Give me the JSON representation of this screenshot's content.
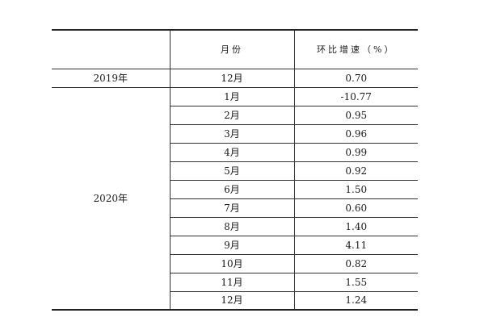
{
  "table": {
    "headers": {
      "year": "",
      "month": "月份",
      "rate": "环比增速（%）"
    },
    "groups": [
      {
        "year": "2019年",
        "rows": [
          {
            "month": "12月",
            "rate": "0.70"
          }
        ]
      },
      {
        "year": "2020年",
        "rows": [
          {
            "month": "1月",
            "rate": "-10.77"
          },
          {
            "month": "2月",
            "rate": "0.95"
          },
          {
            "month": "3月",
            "rate": "0.96"
          },
          {
            "month": "4月",
            "rate": "0.99"
          },
          {
            "month": "5月",
            "rate": "0.92"
          },
          {
            "month": "6月",
            "rate": "1.50"
          },
          {
            "month": "7月",
            "rate": "0.60"
          },
          {
            "month": "8月",
            "rate": "1.40"
          },
          {
            "month": "9月",
            "rate": "4.11"
          },
          {
            "month": "10月",
            "rate": "0.82"
          },
          {
            "month": "11月",
            "rate": "1.55"
          },
          {
            "month": "12月",
            "rate": "1.24"
          }
        ]
      }
    ]
  }
}
